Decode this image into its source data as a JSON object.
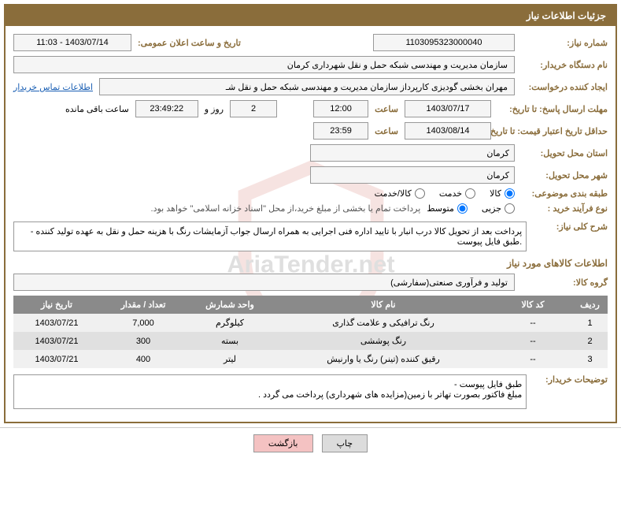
{
  "title": "جزئیات اطلاعات نیاز",
  "watermark_colors": {
    "shield": "#c94b3f",
    "text": "#333333"
  },
  "fields": {
    "need_number": {
      "label": "شماره نیاز:",
      "value": "1103095323000040"
    },
    "announce_datetime": {
      "label": "تاریخ و ساعت اعلان عمومی:",
      "value": "1403/07/14 - 11:03"
    },
    "buyer_org": {
      "label": "نام دستگاه خریدار:",
      "value": "سازمان مدیریت و مهندسی شبکه حمل و نقل شهرداری کرمان"
    },
    "request_creator": {
      "label": "ایجاد کننده درخواست:",
      "value": "مهران بخشی گودیزی کارپرداز سازمان مدیریت و مهندسی شبکه حمل و نقل شـ"
    },
    "buyer_contact_link": "اطلاعات تماس خریدار",
    "reply_deadline": {
      "label": "مهلت ارسال پاسخ: تا تاریخ:",
      "date": "1403/07/17",
      "time_label": "ساعت",
      "time": "12:00",
      "remaining_days": "2",
      "days_and": "روز و",
      "remaining_time": "23:49:22",
      "remaining_label": "ساعت باقی مانده"
    },
    "min_validity": {
      "label": "حداقل تاریخ اعتبار قیمت: تا تاریخ:",
      "date": "1403/08/14",
      "time_label": "ساعت",
      "time": "23:59"
    },
    "delivery_province": {
      "label": "استان محل تحویل:",
      "value": "کرمان"
    },
    "delivery_city": {
      "label": "شهر محل تحویل:",
      "value": "کرمان"
    },
    "subject_category": {
      "label": "طبقه بندی موضوعی:",
      "options": [
        "کالا",
        "خدمت",
        "کالا/خدمت"
      ],
      "selected": 0
    },
    "purchase_process": {
      "label": "نوع فرآیند خرید :",
      "options": [
        "جزیی",
        "متوسط"
      ],
      "selected": 1,
      "note": "پرداخت تمام یا بخشی از مبلغ خرید،از محل \"اسناد خزانه اسلامی\" خواهد بود."
    },
    "need_description": {
      "label": "شرح کلی نیاز:",
      "value": "پرداخت بعد از تحویل کالا درب انبار با تایید اداره فنی اجرایی به همراه ارسال جواب آزمایشات رنگ با هزینه حمل و نقل به عهده تولید کننده - .طبق فایل پیوست"
    },
    "goods_section_title": "اطلاعات کالاهای مورد نیاز",
    "goods_group": {
      "label": "گروه کالا:",
      "value": "تولید و فرآوری صنعتی(سفارشی)"
    },
    "buyer_notes": {
      "label": "توضیحات خریدار:",
      "value": "طبق فایل پیوست -\nمبلغ فاکتور بصورت تهاتر با زمین(مزایده های شهرداری) پرداخت می گردد ."
    }
  },
  "table": {
    "headers": [
      "ردیف",
      "کد کالا",
      "نام کالا",
      "واحد شمارش",
      "تعداد / مقدار",
      "تاریخ نیاز"
    ],
    "rows": [
      {
        "n": "1",
        "code": "--",
        "name": "رنگ ترافیکی و علامت گذاری",
        "unit": "کیلوگرم",
        "qty": "7,000",
        "date": "1403/07/21"
      },
      {
        "n": "2",
        "code": "--",
        "name": "رنگ پوششی",
        "unit": "بسته",
        "qty": "300",
        "date": "1403/07/21"
      },
      {
        "n": "3",
        "code": "--",
        "name": "رقیق کننده (تینر) رنگ یا وارنیش",
        "unit": "لیتر",
        "qty": "400",
        "date": "1403/07/21"
      }
    ]
  },
  "buttons": {
    "print": "چاپ",
    "back": "بازگشت"
  }
}
